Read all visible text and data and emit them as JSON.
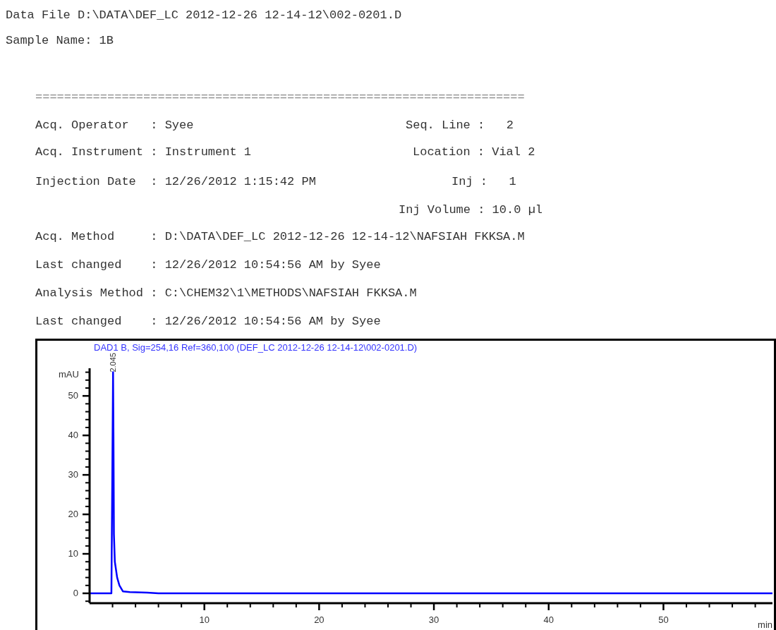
{
  "chart_data": {
    "type": "line",
    "title": "DAD1 B, Sig=254,16 Ref=360,100 (DEF_LC 2012-12-26 12-14-12\\002-0201.D)",
    "xlabel": "min",
    "ylabel": "mAU",
    "annotations": [
      "Data File D:\\DATA\\DEF_LC 2012-12-26 12-14-12\\002-0201.D",
      "Sample Name: 1B",
      "====================================================================",
      "Acq. Operator   : Syee",
      "Seq. Line :   2",
      "Acq. Instrument : Instrument 1",
      "Location : Vial 2",
      "Injection Date  : 12/26/2012 1:15:42 PM",
      "Inj :   1",
      "Inj Volume : 10.0 µl",
      "Acq. Method     : D:\\DATA\\DEF_LC 2012-12-26 12-14-12\\NAFSIAH FKKSA.M",
      "Last changed    : 12/26/2012 10:54:56 AM by Syee",
      "Analysis Method : C:\\CHEM32\\1\\METHODS\\NAFSIAH FKKSA.M",
      "Last changed    : 12/26/2012 10:54:56 AM by Syee",
      {
        "text": "2.045",
        "x": 2.045,
        "y": 56
      }
    ],
    "series": [
      {
        "color": "#0000ff",
        "x": [
          0,
          1.9,
          1.98,
          2.045,
          2.08,
          2.12,
          2.2,
          2.4,
          2.6,
          2.9,
          3.5,
          5,
          6,
          59.5
        ],
        "values": [
          0,
          0,
          30,
          56,
          40,
          15,
          8,
          4,
          2,
          0.5,
          0.3,
          0.2,
          0,
          0
        ]
      }
    ],
    "xlim": [
      0,
      59.5
    ],
    "xticks": [
      {
        "value": 2,
        "label": null
      },
      {
        "value": 4,
        "label": null
      },
      {
        "value": 6,
        "label": null
      },
      {
        "value": 8,
        "label": null
      },
      10,
      {
        "value": 12,
        "label": null
      },
      {
        "value": 14,
        "label": null
      },
      {
        "value": 16,
        "label": null
      },
      {
        "value": 18,
        "label": null
      },
      20,
      {
        "value": 22,
        "label": null
      },
      {
        "value": 24,
        "label": null
      },
      {
        "value": 26,
        "label": null
      },
      {
        "value": 28,
        "label": null
      },
      30,
      {
        "value": 32,
        "label": null
      },
      {
        "value": 34,
        "label": null
      },
      {
        "value": 36,
        "label": null
      },
      {
        "value": 38,
        "label": null
      },
      40,
      {
        "value": 42,
        "label": null
      },
      {
        "value": 44,
        "label": null
      },
      {
        "value": 46,
        "label": null
      },
      {
        "value": 48,
        "label": null
      },
      50,
      {
        "value": 52,
        "label": null
      },
      {
        "value": 54,
        "label": null
      },
      {
        "value": 56,
        "label": null
      },
      {
        "value": 58,
        "label": null
      }
    ],
    "ylim": [
      -2.5,
      57
    ],
    "yticks": [
      {
        "value": -2,
        "label": null
      },
      0,
      {
        "value": 2,
        "label": null
      },
      {
        "value": 4,
        "label": null
      },
      {
        "value": 6,
        "label": null
      },
      {
        "value": 8,
        "label": null
      },
      10,
      {
        "value": 12,
        "label": null
      },
      {
        "value": 14,
        "label": null
      },
      {
        "value": 16,
        "label": null
      },
      {
        "value": 18,
        "label": null
      },
      20,
      {
        "value": 22,
        "label": null
      },
      {
        "value": 24,
        "label": null
      },
      {
        "value": 26,
        "label": null
      },
      {
        "value": 28,
        "label": null
      },
      30,
      {
        "value": 32,
        "label": null
      },
      {
        "value": 34,
        "label": null
      },
      {
        "value": 36,
        "label": null
      },
      {
        "value": 38,
        "label": null
      },
      40,
      {
        "value": 42,
        "label": null
      },
      {
        "value": 44,
        "label": null
      },
      {
        "value": 46,
        "label": null
      },
      {
        "value": 48,
        "label": null
      },
      50,
      {
        "value": 52,
        "label": null
      },
      {
        "value": 54,
        "label": null
      },
      {
        "value": 56,
        "label": null
      }
    ],
    "grid": false,
    "legend": false,
    "marker": "none",
    "line_style": "solid"
  }
}
